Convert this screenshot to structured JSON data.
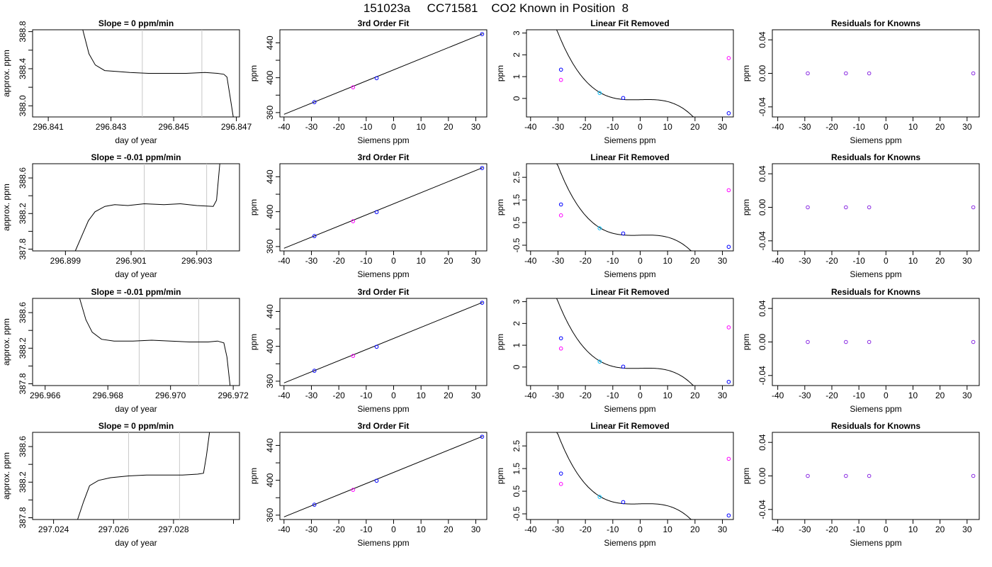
{
  "title": "151023a     CC71581    CO2 Known in Position  8",
  "styles": {
    "line": "#000000",
    "grid_vline": "#c8c8c8",
    "blue": "#0000ff",
    "cyan": "#00bfff",
    "magenta": "#ff00ff",
    "purple": "#8a2be2"
  },
  "chart_data": [
    {
      "type": "line",
      "title": "Slope =  0  ppm/min",
      "xlabel": "day of year",
      "ylabel": "approx. ppm",
      "xlim": [
        296.8405,
        296.8471
      ],
      "ylim": [
        387.88,
        388.82
      ],
      "xticks": [
        296.841,
        296.843,
        296.845,
        296.847
      ],
      "xtick_labels": [
        "296.841",
        "296.843",
        "296.845",
        "296.847"
      ],
      "yticks": [
        388.0,
        388.4,
        388.8
      ],
      "ytick_labels": [
        "388.0",
        "388.4",
        "388.8"
      ],
      "yminor": [
        388.2,
        388.6
      ],
      "vlines": [
        296.844,
        296.8459
      ],
      "series": [
        {
          "x": [
            296.8421,
            296.8423,
            296.8425,
            296.8428,
            296.8432,
            296.8436,
            296.8442,
            296.8448,
            296.8454,
            296.846,
            296.8464,
            296.8466,
            296.8467,
            296.8468,
            296.8469
          ],
          "y": [
            388.82,
            388.56,
            388.44,
            388.38,
            388.37,
            388.36,
            388.35,
            388.35,
            388.35,
            388.36,
            388.35,
            388.34,
            388.31,
            388.1,
            387.88
          ]
        }
      ]
    },
    {
      "type": "scatter",
      "title": "3rd Order Fit",
      "xlabel": "Siemens ppm",
      "ylabel": "ppm",
      "xlim": [
        -41.5,
        34
      ],
      "ylim": [
        355,
        455
      ],
      "xticks": [
        -40,
        -30,
        -20,
        -10,
        0,
        10,
        20,
        30
      ],
      "yticks": [
        360,
        400,
        440
      ],
      "yminor": [
        380,
        420
      ],
      "fit": {
        "x": [
          -40,
          32.5
        ],
        "y": [
          358,
          450.5
        ]
      },
      "points": [
        {
          "x": -28.9,
          "y": 372,
          "color": "blue"
        },
        {
          "x": -14.8,
          "y": 389,
          "color": "magenta"
        },
        {
          "x": -6.2,
          "y": 399.5,
          "color": "blue"
        },
        {
          "x": 32.3,
          "y": 450,
          "color": "blue"
        }
      ]
    },
    {
      "type": "scatter",
      "title": "Linear Fit Removed",
      "xlabel": "Siemens ppm",
      "ylabel": "ppm",
      "xlim": [
        -41.5,
        34
      ],
      "ylim": [
        -0.85,
        3.15
      ],
      "xticks": [
        -40,
        -30,
        -20,
        -10,
        0,
        10,
        20,
        30
      ],
      "yticks": [
        0,
        1,
        2,
        3
      ],
      "curve": [
        -0.000117,
        0.0,
        0.003,
        0.0,
        -0.058
      ],
      "curve_range": [
        -39.5,
        33
      ],
      "points": [
        {
          "x": -28.9,
          "y": 1.32,
          "color": "blue"
        },
        {
          "x": -28.9,
          "y": 0.85,
          "color": "magenta"
        },
        {
          "x": -14.8,
          "y": 0.25,
          "color": "cyan"
        },
        {
          "x": -6.2,
          "y": 0.02,
          "color": "blue"
        },
        {
          "x": 32.3,
          "y": 1.85,
          "color": "magenta"
        },
        {
          "x": 32.3,
          "y": -0.68,
          "color": "blue"
        }
      ]
    },
    {
      "type": "scatter",
      "title": "Residuals for Knowns",
      "xlabel": "Siemens ppm",
      "ylabel": "ppm",
      "xlim": [
        -42,
        34.5
      ],
      "ylim": [
        -0.052,
        0.052
      ],
      "xticks": [
        -40,
        -30,
        -20,
        -10,
        0,
        10,
        20,
        30
      ],
      "yticks": [
        -0.04,
        0.0,
        0.04
      ],
      "ytick_labels": [
        "-0.04",
        "0.00",
        "0.04"
      ],
      "points": [
        {
          "x": -28.9,
          "y": 0,
          "color": "purple"
        },
        {
          "x": -14.8,
          "y": 0,
          "color": "purple"
        },
        {
          "x": -6.2,
          "y": 0,
          "color": "purple"
        },
        {
          "x": 32.3,
          "y": 0,
          "color": "purple"
        }
      ]
    },
    {
      "type": "line",
      "title": "Slope =  -0.01  ppm/min",
      "xlabel": "day of year",
      "ylabel": "approx. ppm",
      "xlim": [
        296.898,
        296.9043
      ],
      "ylim": [
        387.78,
        388.76
      ],
      "xticks": [
        296.899,
        296.901,
        296.903
      ],
      "xtick_labels": [
        "296.899",
        "296.901",
        "296.903"
      ],
      "yticks": [
        387.8,
        388.2,
        388.6
      ],
      "ytick_labels": [
        "387.8",
        "388.2",
        "388.6"
      ],
      "yminor": [
        388.0,
        388.4
      ],
      "vlines": [
        296.9014,
        296.9033
      ],
      "series": [
        {
          "x": [
            296.8993,
            296.8995,
            296.8997,
            296.8999,
            296.9002,
            296.9005,
            296.9009,
            296.9014,
            296.902,
            296.9025,
            296.903,
            296.9035,
            296.9036,
            296.9037
          ],
          "y": [
            387.78,
            387.95,
            388.12,
            388.22,
            388.28,
            388.3,
            388.29,
            388.31,
            388.3,
            388.31,
            388.29,
            388.28,
            388.35,
            388.76
          ]
        }
      ]
    },
    {
      "type": "scatter",
      "title": "3rd Order Fit",
      "xlabel": "Siemens ppm",
      "ylabel": "ppm",
      "xlim": [
        -41.5,
        34
      ],
      "ylim": [
        355,
        455
      ],
      "xticks": [
        -40,
        -30,
        -20,
        -10,
        0,
        10,
        20,
        30
      ],
      "yticks": [
        360,
        400,
        440
      ],
      "yminor": [
        380,
        420
      ],
      "fit": {
        "x": [
          -40,
          32.5
        ],
        "y": [
          358,
          450.5
        ]
      },
      "points": [
        {
          "x": -28.9,
          "y": 372,
          "color": "blue"
        },
        {
          "x": -14.8,
          "y": 389,
          "color": "magenta"
        },
        {
          "x": -6.2,
          "y": 399.5,
          "color": "blue"
        },
        {
          "x": 32.3,
          "y": 450,
          "color": "blue"
        }
      ]
    },
    {
      "type": "scatter",
      "title": "Linear Fit Removed",
      "xlabel": "Siemens ppm",
      "ylabel": "ppm",
      "xlim": [
        -41.5,
        34
      ],
      "ylim": [
        -0.75,
        3.1
      ],
      "xticks": [
        -40,
        -30,
        -20,
        -10,
        0,
        10,
        20,
        30
      ],
      "yticks": [
        -0.5,
        0.5,
        1.5,
        2.5
      ],
      "ytick_labels": [
        "-0.5",
        "0.5",
        "1.5",
        "2.5"
      ],
      "curve": [
        -0.000117,
        0.0,
        0.003,
        0.0,
        -0.058
      ],
      "curve_range": [
        -39.5,
        33
      ],
      "points": [
        {
          "x": -28.9,
          "y": 1.3,
          "color": "blue"
        },
        {
          "x": -28.9,
          "y": 0.82,
          "color": "magenta"
        },
        {
          "x": -14.8,
          "y": 0.25,
          "color": "cyan"
        },
        {
          "x": -6.2,
          "y": 0.02,
          "color": "blue"
        },
        {
          "x": 32.3,
          "y": 1.93,
          "color": "magenta"
        },
        {
          "x": 32.3,
          "y": -0.57,
          "color": "blue"
        }
      ]
    },
    {
      "type": "scatter",
      "title": "Residuals for Knowns",
      "xlabel": "Siemens ppm",
      "ylabel": "ppm",
      "xlim": [
        -42,
        34.5
      ],
      "ylim": [
        -0.052,
        0.052
      ],
      "xticks": [
        -40,
        -30,
        -20,
        -10,
        0,
        10,
        20,
        30
      ],
      "yticks": [
        -0.04,
        0.0,
        0.04
      ],
      "ytick_labels": [
        "-0.04",
        "0.00",
        "0.04"
      ],
      "points": [
        {
          "x": -28.9,
          "y": 0,
          "color": "purple"
        },
        {
          "x": -14.8,
          "y": 0,
          "color": "purple"
        },
        {
          "x": -6.2,
          "y": 0,
          "color": "purple"
        },
        {
          "x": 32.3,
          "y": 0,
          "color": "purple"
        }
      ]
    },
    {
      "type": "line",
      "title": "Slope =  -0.01  ppm/min",
      "xlabel": "day of year",
      "ylabel": "approx. ppm",
      "xlim": [
        296.9656,
        296.9722
      ],
      "ylim": [
        387.78,
        388.76
      ],
      "xticks": [
        296.966,
        296.968,
        296.97,
        296.972
      ],
      "xtick_labels": [
        "296.966",
        "296.968",
        "296.970",
        "296.972"
      ],
      "yticks": [
        387.8,
        388.2,
        388.6
      ],
      "ytick_labels": [
        "387.8",
        "388.2",
        "388.6"
      ],
      "yminor": [
        388.0,
        388.4
      ],
      "vlines": [
        296.969,
        296.9709
      ],
      "series": [
        {
          "x": [
            296.9671,
            296.9673,
            296.9675,
            296.9678,
            296.9682,
            296.9688,
            296.9694,
            296.97,
            296.9706,
            296.9712,
            296.9715,
            296.9717,
            296.9718,
            296.9719
          ],
          "y": [
            388.76,
            388.52,
            388.38,
            388.3,
            388.28,
            388.28,
            388.29,
            388.28,
            388.27,
            388.27,
            388.28,
            388.26,
            388.1,
            387.78
          ]
        }
      ]
    },
    {
      "type": "scatter",
      "title": "3rd Order Fit",
      "xlabel": "Siemens ppm",
      "ylabel": "ppm",
      "xlim": [
        -41.5,
        34
      ],
      "ylim": [
        355,
        455
      ],
      "xticks": [
        -40,
        -30,
        -20,
        -10,
        0,
        10,
        20,
        30
      ],
      "yticks": [
        360,
        400,
        440
      ],
      "yminor": [
        380,
        420
      ],
      "fit": {
        "x": [
          -40,
          32.5
        ],
        "y": [
          358,
          450.5
        ]
      },
      "points": [
        {
          "x": -28.9,
          "y": 372,
          "color": "blue"
        },
        {
          "x": -14.8,
          "y": 389,
          "color": "magenta"
        },
        {
          "x": -6.2,
          "y": 399.5,
          "color": "blue"
        },
        {
          "x": 32.3,
          "y": 450,
          "color": "blue"
        }
      ]
    },
    {
      "type": "scatter",
      "title": "Linear Fit Removed",
      "xlabel": "Siemens ppm",
      "ylabel": "ppm",
      "xlim": [
        -41.5,
        34
      ],
      "ylim": [
        -0.85,
        3.15
      ],
      "xticks": [
        -40,
        -30,
        -20,
        -10,
        0,
        10,
        20,
        30
      ],
      "yticks": [
        0,
        1,
        2,
        3
      ],
      "curve": [
        -0.000117,
        0.0,
        0.003,
        0.0,
        -0.058
      ],
      "curve_range": [
        -39.5,
        33
      ],
      "points": [
        {
          "x": -28.9,
          "y": 1.32,
          "color": "blue"
        },
        {
          "x": -28.9,
          "y": 0.85,
          "color": "magenta"
        },
        {
          "x": -14.8,
          "y": 0.25,
          "color": "cyan"
        },
        {
          "x": -6.2,
          "y": 0.02,
          "color": "blue"
        },
        {
          "x": 32.3,
          "y": 1.82,
          "color": "magenta"
        },
        {
          "x": 32.3,
          "y": -0.68,
          "color": "blue"
        }
      ]
    },
    {
      "type": "scatter",
      "title": "Residuals for Knowns",
      "xlabel": "Siemens ppm",
      "ylabel": "ppm",
      "xlim": [
        -42,
        34.5
      ],
      "ylim": [
        -0.052,
        0.052
      ],
      "xticks": [
        -40,
        -30,
        -20,
        -10,
        0,
        10,
        20,
        30
      ],
      "yticks": [
        -0.04,
        0.0,
        0.04
      ],
      "ytick_labels": [
        "-0.04",
        "0.00",
        "0.04"
      ],
      "points": [
        {
          "x": -28.9,
          "y": 0,
          "color": "purple"
        },
        {
          "x": -14.8,
          "y": 0,
          "color": "purple"
        },
        {
          "x": -6.2,
          "y": 0,
          "color": "purple"
        },
        {
          "x": 32.3,
          "y": 0,
          "color": "purple"
        }
      ]
    },
    {
      "type": "line",
      "title": "Slope =  0  ppm/min",
      "xlabel": "day of year",
      "ylabel": "approx. ppm",
      "xlim": [
        297.0233,
        297.0302
      ],
      "ylim": [
        387.78,
        388.76
      ],
      "xticks": [
        297.024,
        297.026,
        297.028,
        297.03
      ],
      "xtick_labels": [
        "297.024",
        "297.026",
        "297.028",
        ""
      ],
      "yticks": [
        387.8,
        388.2,
        388.6
      ],
      "ytick_labels": [
        "387.8",
        "388.2",
        "388.6"
      ],
      "yminor": [
        388.0,
        388.4
      ],
      "vlines": [
        297.0265,
        297.0282
      ],
      "series": [
        {
          "x": [
            297.0248,
            297.025,
            297.0252,
            297.0255,
            297.0259,
            297.0265,
            297.0271,
            297.0277,
            297.0283,
            297.0288,
            297.029,
            297.0291,
            297.0292
          ],
          "y": [
            387.78,
            387.98,
            388.16,
            388.22,
            388.25,
            388.27,
            388.28,
            388.28,
            388.28,
            388.29,
            388.3,
            388.5,
            388.76
          ]
        }
      ]
    },
    {
      "type": "scatter",
      "title": "3rd Order Fit",
      "xlabel": "Siemens ppm",
      "ylabel": "ppm",
      "xlim": [
        -41.5,
        34
      ],
      "ylim": [
        355,
        455
      ],
      "xticks": [
        -40,
        -30,
        -20,
        -10,
        0,
        10,
        20,
        30
      ],
      "yticks": [
        360,
        400,
        440
      ],
      "yminor": [
        380,
        420
      ],
      "fit": {
        "x": [
          -40,
          32.5
        ],
        "y": [
          358,
          450.5
        ]
      },
      "points": [
        {
          "x": -28.9,
          "y": 372,
          "color": "blue"
        },
        {
          "x": -14.8,
          "y": 389,
          "color": "magenta"
        },
        {
          "x": -6.2,
          "y": 399.5,
          "color": "blue"
        },
        {
          "x": 32.3,
          "y": 450,
          "color": "blue"
        }
      ]
    },
    {
      "type": "scatter",
      "title": "Linear Fit Removed",
      "xlabel": "Siemens ppm",
      "ylabel": "ppm",
      "xlim": [
        -41.5,
        34
      ],
      "ylim": [
        -0.75,
        3.1
      ],
      "xticks": [
        -40,
        -30,
        -20,
        -10,
        0,
        10,
        20,
        30
      ],
      "yticks": [
        -0.5,
        0.5,
        1.5,
        2.5
      ],
      "ytick_labels": [
        "-0.5",
        "0.5",
        "1.5",
        "2.5"
      ],
      "curve": [
        -0.000117,
        0.0,
        0.003,
        0.0,
        -0.058
      ],
      "curve_range": [
        -39.5,
        33
      ],
      "points": [
        {
          "x": -28.9,
          "y": 1.28,
          "color": "blue"
        },
        {
          "x": -28.9,
          "y": 0.82,
          "color": "magenta"
        },
        {
          "x": -14.8,
          "y": 0.25,
          "color": "cyan"
        },
        {
          "x": -6.2,
          "y": 0.02,
          "color": "blue"
        },
        {
          "x": 32.3,
          "y": 1.93,
          "color": "magenta"
        },
        {
          "x": 32.3,
          "y": -0.57,
          "color": "blue"
        }
      ]
    },
    {
      "type": "scatter",
      "title": "Residuals for Knowns",
      "xlabel": "Siemens ppm",
      "ylabel": "ppm",
      "xlim": [
        -42,
        34.5
      ],
      "ylim": [
        -0.052,
        0.052
      ],
      "xticks": [
        -40,
        -30,
        -20,
        -10,
        0,
        10,
        20,
        30
      ],
      "yticks": [
        -0.04,
        0.0,
        0.04
      ],
      "ytick_labels": [
        "-0.04",
        "0.00",
        "0.04"
      ],
      "points": [
        {
          "x": -28.9,
          "y": 0,
          "color": "purple"
        },
        {
          "x": -14.8,
          "y": 0,
          "color": "purple"
        },
        {
          "x": -6.2,
          "y": 0,
          "color": "purple"
        },
        {
          "x": 32.3,
          "y": 0,
          "color": "purple"
        }
      ]
    }
  ]
}
